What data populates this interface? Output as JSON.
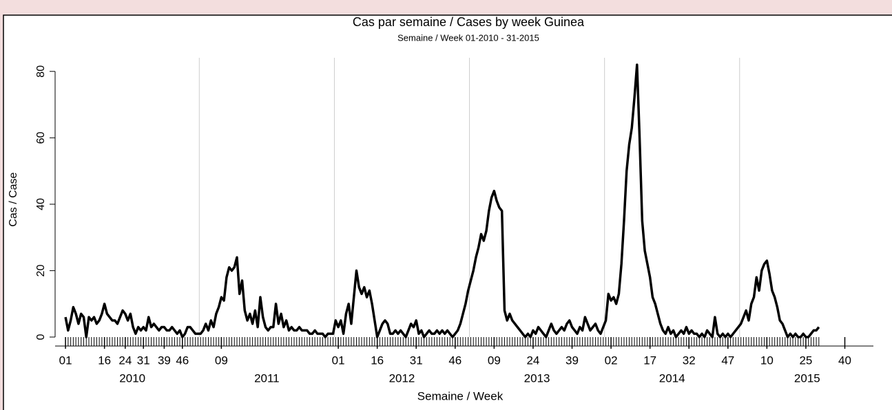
{
  "chart_data": {
    "type": "line",
    "title": "Cas par semaine / Cases by week Guinea",
    "subtitle": "Semaine / Week 01-2010 - 31-2015",
    "x_label": "Semaine / Week",
    "y_label": "Cas / Case",
    "year_labels": [
      "2010",
      "2011",
      "2012",
      "2013",
      "2014",
      "2015"
    ],
    "xgrid": [
      52.5,
      104.5,
      156.5,
      208.5,
      260.5
    ],
    "grid": true,
    "xlim": [
      -3,
      312
    ],
    "ylim": [
      -2.7,
      84.1
    ],
    "yticks": [
      0,
      20,
      40,
      60,
      80
    ],
    "xticks": [
      {
        "value": 1,
        "label": "01"
      },
      16,
      31,
      46,
      {
        "value": 61,
        "label": "09"
      },
      24,
      39,
      {
        "value": 106,
        "label": "01"
      },
      {
        "value": 121,
        "label": "16"
      },
      {
        "value": 136,
        "label": "31"
      },
      {
        "value": 151,
        "label": "46"
      },
      {
        "value": 166,
        "label": "09"
      },
      {
        "value": 181,
        "label": "24"
      },
      {
        "value": 196,
        "label": "39"
      },
      {
        "value": 211,
        "label": "02"
      },
      {
        "value": 226,
        "label": "17"
      },
      {
        "value": 241,
        "label": "32"
      },
      {
        "value": 256,
        "label": "47"
      },
      {
        "value": 271,
        "label": "10"
      },
      {
        "value": 286,
        "label": "25"
      },
      {
        "value": 301,
        "label": "40"
      }
    ],
    "x": [
      1,
      2,
      3,
      4,
      5,
      6,
      7,
      8,
      9,
      10,
      11,
      12,
      13,
      14,
      15,
      16,
      17,
      18,
      19,
      20,
      21,
      22,
      23,
      24,
      25,
      26,
      27,
      28,
      29,
      30,
      31,
      32,
      33,
      34,
      35,
      36,
      37,
      38,
      39,
      40,
      41,
      42,
      43,
      44,
      45,
      46,
      47,
      48,
      49,
      50,
      51,
      52,
      53,
      54,
      55,
      56,
      57,
      58,
      59,
      60,
      61,
      62,
      63,
      64,
      65,
      66,
      67,
      68,
      69,
      70,
      71,
      72,
      73,
      74,
      75,
      76,
      77,
      78,
      79,
      80,
      81,
      82,
      83,
      84,
      85,
      86,
      87,
      88,
      89,
      90,
      91,
      92,
      93,
      94,
      95,
      96,
      97,
      98,
      99,
      100,
      101,
      102,
      103,
      104,
      105,
      106,
      107,
      108,
      109,
      110,
      111,
      112,
      113,
      114,
      115,
      116,
      117,
      118,
      119,
      120,
      121,
      122,
      123,
      124,
      125,
      126,
      127,
      128,
      129,
      130,
      131,
      132,
      133,
      134,
      135,
      136,
      137,
      138,
      139,
      140,
      141,
      142,
      143,
      144,
      145,
      146,
      147,
      148,
      149,
      150,
      151,
      152,
      153,
      154,
      155,
      156,
      157,
      158,
      159,
      160,
      161,
      162,
      163,
      164,
      165,
      166,
      167,
      168,
      169,
      170,
      171,
      172,
      173,
      174,
      175,
      176,
      177,
      178,
      179,
      180,
      181,
      182,
      183,
      184,
      185,
      186,
      187,
      188,
      189,
      190,
      191,
      192,
      193,
      194,
      195,
      196,
      197,
      198,
      199,
      200,
      201,
      202,
      203,
      204,
      205,
      206,
      207,
      208,
      209,
      210,
      211,
      212,
      213,
      214,
      215,
      216,
      217,
      218,
      219,
      220,
      221,
      222,
      223,
      224,
      225,
      226,
      227,
      228,
      229,
      230,
      231,
      232,
      233,
      234,
      235,
      236,
      237,
      238,
      239,
      240,
      241,
      242,
      243,
      244,
      245,
      246,
      247,
      248,
      249,
      250,
      251,
      252,
      253,
      254,
      255,
      256,
      257,
      258,
      259,
      260,
      261,
      262,
      263,
      264,
      265,
      266,
      267,
      268,
      269,
      270,
      271,
      272,
      273,
      274,
      275,
      276,
      277,
      278,
      279,
      280,
      281,
      282,
      283,
      284,
      285,
      286,
      287,
      288,
      289,
      290,
      291
    ],
    "series": [
      {
        "name": "Cas",
        "color": "#000000",
        "values": [
          6,
          2,
          5,
          9,
          7,
          4,
          7,
          6,
          0,
          6,
          5,
          6,
          4,
          5,
          7,
          10,
          7,
          6,
          5,
          5,
          4,
          6,
          8,
          7,
          5,
          7,
          3,
          1,
          3,
          2,
          3,
          2,
          6,
          3,
          4,
          3,
          2,
          3,
          3,
          2,
          2,
          3,
          2,
          1,
          2,
          0,
          1,
          3,
          3,
          2,
          1,
          1,
          1,
          2,
          4,
          2,
          5,
          3,
          7,
          9,
          12,
          11,
          18,
          21,
          20,
          21,
          24,
          13,
          17,
          8,
          5,
          7,
          4,
          8,
          3,
          12,
          6,
          3,
          2,
          3,
          3,
          10,
          4,
          7,
          3,
          5,
          2,
          3,
          2,
          2,
          3,
          2,
          2,
          2,
          1,
          1,
          2,
          1,
          1,
          1,
          0,
          1,
          1,
          1,
          5,
          3,
          5,
          1,
          7,
          10,
          4,
          12,
          20,
          15,
          13,
          15,
          12,
          14,
          10,
          5,
          0,
          2,
          4,
          5,
          4,
          1,
          1,
          2,
          1,
          2,
          1,
          0,
          2,
          4,
          3,
          5,
          1,
          2,
          0,
          1,
          2,
          1,
          1,
          2,
          1,
          2,
          1,
          2,
          1,
          0,
          1,
          2,
          4,
          7,
          10,
          14,
          17,
          20,
          24,
          27,
          31,
          29,
          32,
          38,
          42,
          44,
          41,
          39,
          38,
          8,
          5,
          7,
          5,
          4,
          3,
          2,
          1,
          0,
          1,
          0,
          2,
          1,
          3,
          2,
          1,
          0,
          2,
          4,
          2,
          1,
          2,
          3,
          2,
          4,
          5,
          3,
          2,
          1,
          3,
          2,
          6,
          4,
          2,
          3,
          4,
          2,
          1,
          3,
          5,
          13,
          11,
          12,
          10,
          13,
          22,
          35,
          50,
          58,
          63,
          72,
          82,
          60,
          35,
          26,
          22,
          18,
          12,
          10,
          7,
          4,
          2,
          1,
          3,
          1,
          2,
          0,
          1,
          2,
          1,
          3,
          1,
          2,
          1,
          1,
          0,
          1,
          0,
          2,
          1,
          0,
          6,
          1,
          0,
          1,
          0,
          1,
          0,
          1,
          2,
          3,
          4,
          6,
          8,
          5,
          10,
          12,
          18,
          14,
          20,
          22,
          23,
          19,
          14,
          12,
          9,
          5,
          4,
          2,
          0,
          1,
          0,
          1,
          0,
          0,
          1,
          0,
          0,
          1,
          2,
          2,
          3
        ]
      }
    ]
  }
}
